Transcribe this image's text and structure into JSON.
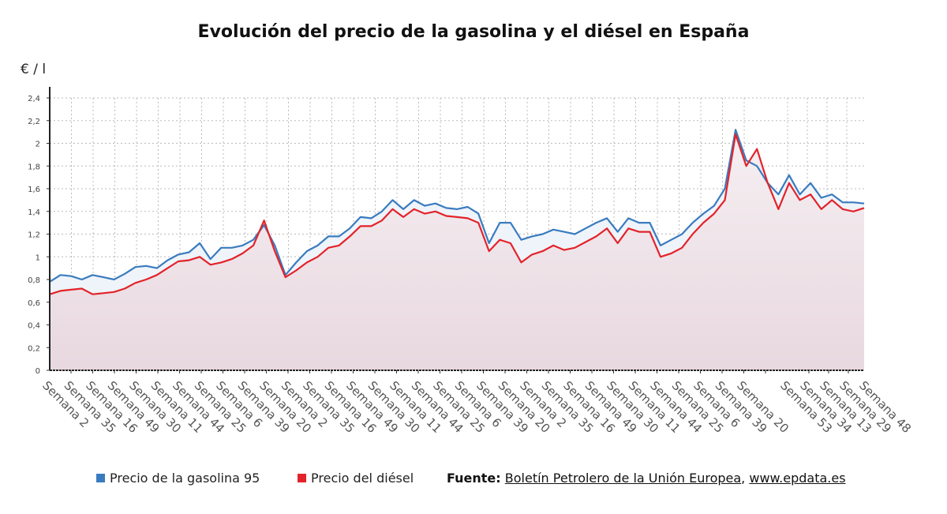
{
  "chart_data": {
    "type": "line",
    "title": "Evolución del precio de la gasolina y el diésel en España",
    "ylabel": "€ / l",
    "ylim": [
      0,
      2.4
    ],
    "yticks": [
      "0",
      "0,2",
      "0,4",
      "0,6",
      "0,8",
      "1",
      "1,2",
      "1,4",
      "1,6",
      "1,8",
      "2",
      "2,2",
      "2,4"
    ],
    "xticks": [
      "Semana 2",
      "Semana 35",
      "Semana 16",
      "Semana 49",
      "Semana 30",
      "Semana 11",
      "Semana 44",
      "Semana 25",
      "Semana 6",
      "Semana 39",
      "Semana 20",
      "Semana 2",
      "Semana 35",
      "Semana 16",
      "Semana 49",
      "Semana 30",
      "Semana 11",
      "Semana 44",
      "Semana 25",
      "Semana 6",
      "Semana 39",
      "Semana 20",
      "Semana 2",
      "Semana 35",
      "Semana 16",
      "Semana 49",
      "Semana 30",
      "Semana 11",
      "Semana 44",
      "Semana 25",
      "Semana 6",
      "Semana 39",
      "Semana 20",
      "Semana 53",
      "Semana 34",
      "Semana 13",
      "Semana 29",
      "Semana 48"
    ],
    "grid": true,
    "legend": "bottom",
    "series": [
      {
        "name": "Precio de la gasolina 95",
        "color": "#3a7bbf",
        "values": [
          0.78,
          0.84,
          0.83,
          0.8,
          0.84,
          0.82,
          0.8,
          0.85,
          0.91,
          0.92,
          0.9,
          0.97,
          1.02,
          1.04,
          1.12,
          0.98,
          1.08,
          1.08,
          1.1,
          1.15,
          1.28,
          1.1,
          0.84,
          0.95,
          1.05,
          1.1,
          1.18,
          1.18,
          1.25,
          1.35,
          1.34,
          1.4,
          1.5,
          1.42,
          1.5,
          1.45,
          1.47,
          1.43,
          1.42,
          1.44,
          1.38,
          1.12,
          1.3,
          1.3,
          1.15,
          1.18,
          1.2,
          1.24,
          1.22,
          1.2,
          1.25,
          1.3,
          1.34,
          1.22,
          1.34,
          1.3,
          1.3,
          1.1,
          1.15,
          1.2,
          1.3,
          1.38,
          1.45,
          1.6,
          2.12,
          1.85,
          1.8,
          1.65,
          1.55,
          1.72,
          1.55,
          1.65,
          1.52,
          1.55,
          1.48,
          1.48,
          1.47
        ]
      },
      {
        "name": "Precio del diésel",
        "color": "#e3232a",
        "values": [
          0.67,
          0.7,
          0.71,
          0.72,
          0.67,
          0.68,
          0.69,
          0.72,
          0.77,
          0.8,
          0.84,
          0.9,
          0.96,
          0.97,
          1.0,
          0.93,
          0.95,
          0.98,
          1.03,
          1.1,
          1.32,
          1.05,
          0.82,
          0.88,
          0.95,
          1.0,
          1.08,
          1.1,
          1.18,
          1.27,
          1.27,
          1.32,
          1.42,
          1.35,
          1.42,
          1.38,
          1.4,
          1.36,
          1.35,
          1.34,
          1.3,
          1.05,
          1.15,
          1.12,
          0.95,
          1.02,
          1.05,
          1.1,
          1.06,
          1.08,
          1.13,
          1.18,
          1.25,
          1.12,
          1.25,
          1.22,
          1.22,
          1.0,
          1.03,
          1.08,
          1.2,
          1.3,
          1.38,
          1.5,
          2.08,
          1.8,
          1.95,
          1.65,
          1.42,
          1.65,
          1.5,
          1.55,
          1.42,
          1.5,
          1.42,
          1.4,
          1.43
        ]
      }
    ]
  },
  "legend": {
    "gasolina": "Precio de la gasolina 95",
    "diesel": "Precio del diésel"
  },
  "source": {
    "label": "Fuente:",
    "text": "Boletín Petrolero de la Unión Europea",
    "sep": ",",
    "site": "www.epdata.es"
  }
}
